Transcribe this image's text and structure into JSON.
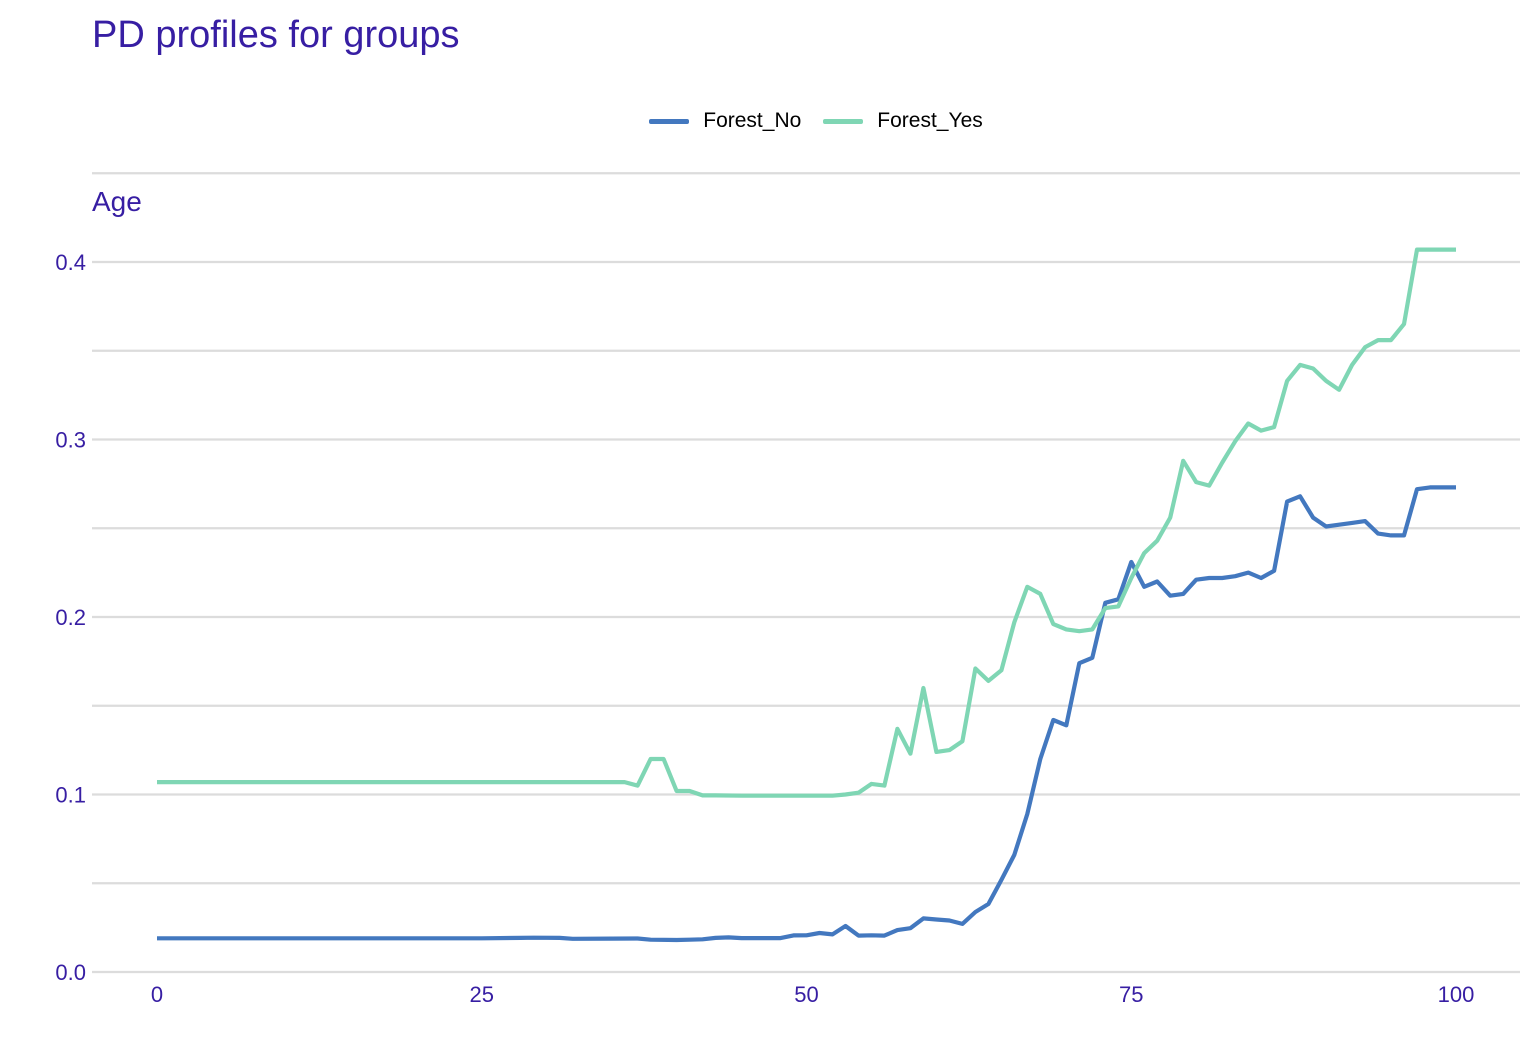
{
  "chart_data": {
    "type": "line",
    "title": "PD profiles for groups",
    "subtitle": "Age",
    "xlabel": "",
    "ylabel": "",
    "xlim": [
      0,
      100
    ],
    "ylim": [
      0,
      0.42
    ],
    "x_ticks": [
      "0",
      "25",
      "50",
      "75",
      "100"
    ],
    "x_tick_values": [
      0,
      25,
      50,
      75,
      100
    ],
    "y_ticks": [
      "0.0",
      "0.1",
      "0.2",
      "0.3",
      "0.4"
    ],
    "y_tick_values": [
      0,
      0.1,
      0.2,
      0.3,
      0.4
    ],
    "grid": true,
    "legend_position": "top",
    "series": [
      {
        "name": "Forest_No",
        "color": "#4378bf",
        "points": [
          [
            0,
            0.019
          ],
          [
            5,
            0.019
          ],
          [
            10,
            0.019
          ],
          [
            15,
            0.019
          ],
          [
            20,
            0.019
          ],
          [
            25,
            0.019
          ],
          [
            28,
            0.0192
          ],
          [
            29,
            0.0193
          ],
          [
            31,
            0.0192
          ],
          [
            32,
            0.0187
          ],
          [
            35,
            0.0188
          ],
          [
            37,
            0.0189
          ],
          [
            38,
            0.0182
          ],
          [
            40,
            0.018
          ],
          [
            41,
            0.0182
          ],
          [
            42,
            0.0184
          ],
          [
            43,
            0.0192
          ],
          [
            44,
            0.0195
          ],
          [
            45,
            0.0191
          ],
          [
            46,
            0.0191
          ],
          [
            48,
            0.0191
          ],
          [
            49,
            0.0206
          ],
          [
            50,
            0.0207
          ],
          [
            51,
            0.022
          ],
          [
            52,
            0.0212
          ],
          [
            53,
            0.0259
          ],
          [
            54,
            0.0205
          ],
          [
            55,
            0.0207
          ],
          [
            56,
            0.0205
          ],
          [
            57,
            0.0236
          ],
          [
            58,
            0.0247
          ],
          [
            59,
            0.0302
          ],
          [
            60,
            0.0296
          ],
          [
            61,
            0.029
          ],
          [
            62,
            0.0271
          ],
          [
            63,
            0.0338
          ],
          [
            64,
            0.0383
          ],
          [
            65,
            0.0519
          ],
          [
            66,
            0.066
          ],
          [
            67,
            0.089
          ],
          [
            68,
            0.12
          ],
          [
            69,
            0.142
          ],
          [
            70,
            0.139
          ],
          [
            71,
            0.174
          ],
          [
            72,
            0.177
          ],
          [
            73,
            0.208
          ],
          [
            74,
            0.21
          ],
          [
            75,
            0.231
          ],
          [
            76,
            0.217
          ],
          [
            77,
            0.22
          ],
          [
            78,
            0.212
          ],
          [
            79,
            0.213
          ],
          [
            80,
            0.221
          ],
          [
            81,
            0.222
          ],
          [
            82,
            0.222
          ],
          [
            83,
            0.223
          ],
          [
            84,
            0.225
          ],
          [
            85,
            0.222
          ],
          [
            86,
            0.226
          ],
          [
            87,
            0.265
          ],
          [
            88,
            0.268
          ],
          [
            89,
            0.256
          ],
          [
            90,
            0.251
          ],
          [
            91,
            0.252
          ],
          [
            92,
            0.253
          ],
          [
            93,
            0.254
          ],
          [
            94,
            0.247
          ],
          [
            95,
            0.246
          ],
          [
            96,
            0.246
          ],
          [
            97,
            0.272
          ],
          [
            98,
            0.273
          ],
          [
            99,
            0.273
          ],
          [
            100,
            0.273
          ]
        ]
      },
      {
        "name": "Forest_Yes",
        "color": "#7fd6b4",
        "points": [
          [
            0,
            0.107
          ],
          [
            5,
            0.107
          ],
          [
            10,
            0.107
          ],
          [
            15,
            0.107
          ],
          [
            20,
            0.107
          ],
          [
            25,
            0.107
          ],
          [
            30,
            0.107
          ],
          [
            36,
            0.107
          ],
          [
            37,
            0.105
          ],
          [
            38,
            0.12
          ],
          [
            39,
            0.12
          ],
          [
            40,
            0.102
          ],
          [
            41,
            0.102
          ],
          [
            42,
            0.0995
          ],
          [
            43,
            0.0995
          ],
          [
            45,
            0.0993
          ],
          [
            50,
            0.0993
          ],
          [
            52,
            0.0993
          ],
          [
            53,
            0.1
          ],
          [
            54,
            0.101
          ],
          [
            55,
            0.106
          ],
          [
            56,
            0.105
          ],
          [
            57,
            0.137
          ],
          [
            58,
            0.123
          ],
          [
            59,
            0.16
          ],
          [
            60,
            0.124
          ],
          [
            61,
            0.125
          ],
          [
            62,
            0.13
          ],
          [
            63,
            0.171
          ],
          [
            64,
            0.164
          ],
          [
            65,
            0.17
          ],
          [
            66,
            0.197
          ],
          [
            67,
            0.217
          ],
          [
            68,
            0.213
          ],
          [
            69,
            0.196
          ],
          [
            70,
            0.193
          ],
          [
            71,
            0.192
          ],
          [
            72,
            0.193
          ],
          [
            73,
            0.205
          ],
          [
            74,
            0.206
          ],
          [
            75,
            0.222
          ],
          [
            76,
            0.236
          ],
          [
            77,
            0.243
          ],
          [
            78,
            0.256
          ],
          [
            79,
            0.288
          ],
          [
            80,
            0.276
          ],
          [
            81,
            0.274
          ],
          [
            82,
            0.287
          ],
          [
            83,
            0.299
          ],
          [
            84,
            0.309
          ],
          [
            85,
            0.305
          ],
          [
            86,
            0.307
          ],
          [
            87,
            0.333
          ],
          [
            88,
            0.342
          ],
          [
            89,
            0.34
          ],
          [
            90,
            0.333
          ],
          [
            91,
            0.328
          ],
          [
            92,
            0.342
          ],
          [
            93,
            0.352
          ],
          [
            94,
            0.356
          ],
          [
            95,
            0.356
          ],
          [
            96,
            0.365
          ],
          [
            97,
            0.407
          ],
          [
            98,
            0.407
          ],
          [
            99,
            0.407
          ],
          [
            100,
            0.407
          ]
        ]
      }
    ]
  }
}
